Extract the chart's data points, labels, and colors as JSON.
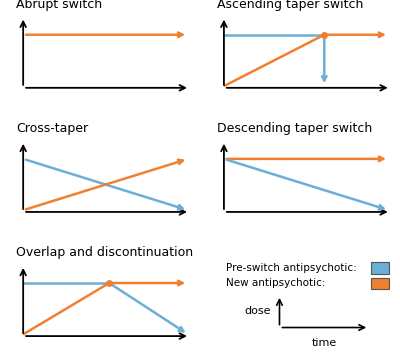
{
  "blue_color": "#6BAED6",
  "orange_color": "#F08030",
  "black_color": "#000000",
  "gray_color": "#999999",
  "background": "#FFFFFF",
  "titles": [
    "Abrupt switch",
    "Ascending taper switch",
    "Cross-taper",
    "Descending taper switch",
    "Overlap and discontinuation"
  ],
  "legend_pre": "Pre-switch antipsychotic:",
  "legend_new": "New antipsychotic:",
  "axis_label_dose": "dose",
  "axis_label_time": "time",
  "title_fontsize": 9,
  "label_fontsize": 8.5
}
